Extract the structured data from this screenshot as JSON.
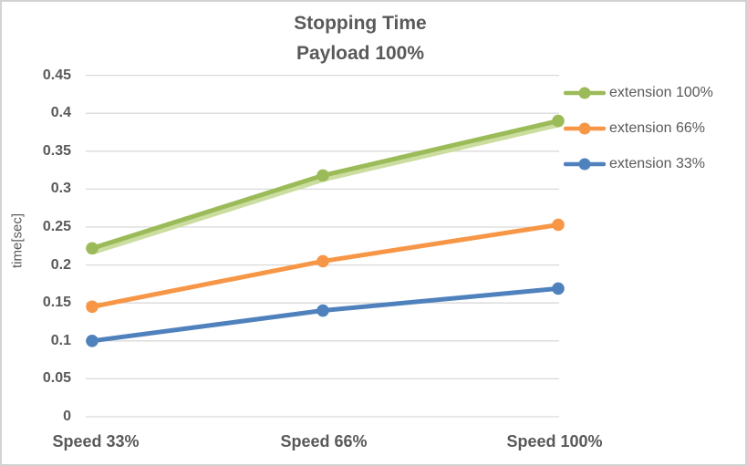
{
  "chart_data": {
    "type": "line",
    "title": "Stopping Time",
    "subtitle": "Payload 100%",
    "categories": [
      "Speed 33%",
      "Speed 66%",
      "Speed 100%"
    ],
    "series": [
      {
        "name": "extension 100%",
        "color": "#9BBB59",
        "shadow_color": "#CBDD9F",
        "values": [
          0.222,
          0.318,
          0.39
        ]
      },
      {
        "name": "extension 66%",
        "color": "#F79646",
        "values": [
          0.145,
          0.205,
          0.253
        ]
      },
      {
        "name": "extension 33%",
        "color": "#4F81BD",
        "values": [
          0.1,
          0.14,
          0.169
        ]
      }
    ],
    "xlabel": "",
    "ylabel": "time[sec]",
    "ylim": [
      0,
      0.45
    ],
    "ytick_step": 0.05,
    "yticks": [
      "0.45",
      "0.4",
      "0.35",
      "0.3",
      "0.25",
      "0.2",
      "0.15",
      "0.1",
      "0.05",
      "0"
    ],
    "grid": true,
    "legend_position": "right",
    "marker": "circle"
  },
  "colors": {
    "text": "#595959",
    "grid": "#D9D9D9",
    "border": "#D2D2D2",
    "background": "#FFFFFF"
  }
}
